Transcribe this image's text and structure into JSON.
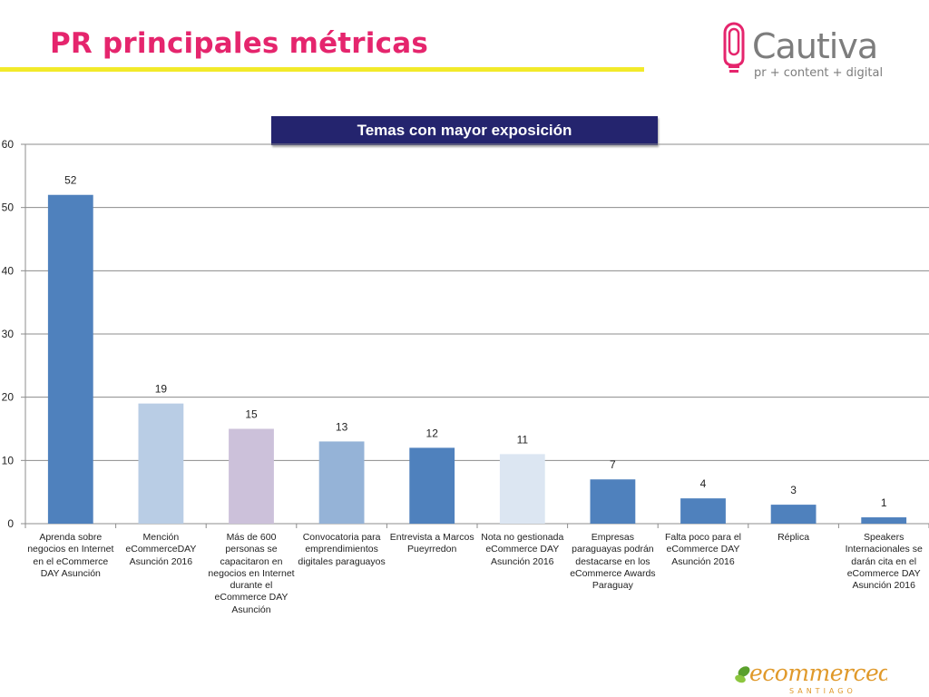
{
  "slide": {
    "title": "PR principales métricas",
    "logo_brand": "Cautiva",
    "logo_tagline": "pr + content + digital",
    "footer_logo": "ecommerceday",
    "footer_logo_sub": "SANTIAGO"
  },
  "colors": {
    "title": "#e5256d",
    "rule": "#f2ea2a",
    "banner": "#24246e"
  },
  "chart_data": {
    "type": "bar",
    "title": "Temas con mayor exposición",
    "categories": [
      "Aprenda sobre negocios en Internet en el eCommerce DAY Asunción",
      "Mención eCommerceDAY Asunción 2016",
      "Más de 600 personas se capacitaron en negocios en Internet durante el eCommerce DAY Asunción",
      "Convocatoria para emprendimientos digitales paraguayos",
      "Entrevista a Marcos Pueyrredon",
      "Nota no gestionada eCommerce DAY Asunción 2016",
      "Empresas paraguayas podrán destacarse en los eCommerce Awards Paraguay",
      "Falta poco para el eCommerce DAY Asunción 2016",
      "Réplica",
      "Speakers Internacionales se darán cita en el eCommerce DAY Asunción 2016"
    ],
    "values": [
      52,
      19,
      15,
      13,
      12,
      11,
      7,
      4,
      3,
      1
    ],
    "bar_colors": [
      "#4f81bd",
      "#b9cde5",
      "#ccc1da",
      "#95b3d7",
      "#4f81bd",
      "#dce6f2",
      "#4f81bd",
      "#4f81bd",
      "#4f81bd",
      "#4f81bd"
    ],
    "ylim": [
      0,
      60
    ],
    "yticks": [
      0,
      10,
      20,
      30,
      40,
      50,
      60
    ],
    "grid": true,
    "legend": "none"
  }
}
